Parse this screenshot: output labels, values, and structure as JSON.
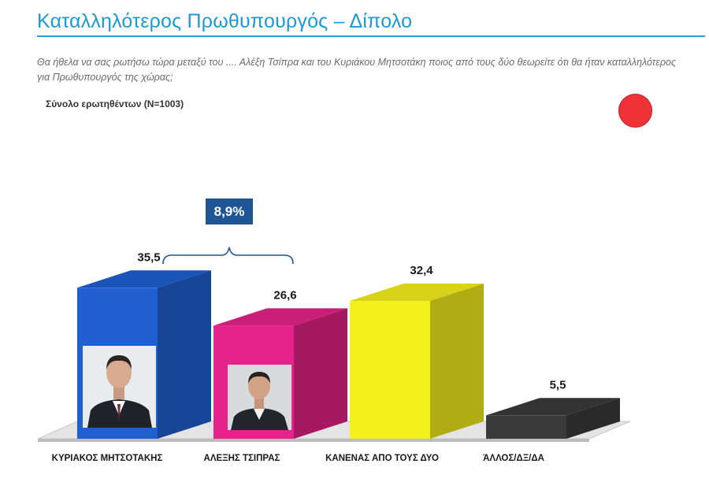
{
  "header": {
    "title": "Καταλληλότερος Πρωθυπουργός – Δίπολο",
    "question": "Θα ήθελα να σας ρωτήσω τώρα μεταξύ του .... Αλέξη Τσίπρα και του Κυριάκου Μητσοτάκη ποιος από τους δύο θεωρείτε ότι θα ήταν καταλληλότερος για Πρωθυπουργός της χώρας;",
    "base": "Σύνολο ερωτηθέντων (N=1003)"
  },
  "difference_label": "8,9%",
  "colors": {
    "title": "#1a9ad6",
    "indicator_dot": "#ee3237",
    "difference_box": "#1f5595"
  },
  "chart_data": {
    "type": "bar",
    "categories": [
      "ΚΥΡΙΑΚΟΣ ΜΗΤΣΟΤΑΚΗΣ",
      "ΑΛΕΞΗΣ ΤΣΙΠΡΑΣ",
      "ΚΑΝΕΝΑΣ ΑΠΟ ΤΟΥΣ ΔΥΟ",
      "ΆΛΛΟΣ/ΔΞ/ΔΑ"
    ],
    "values": [
      35.5,
      26.6,
      32.4,
      5.5
    ],
    "labels": [
      "35,5",
      "26,6",
      "32,4",
      "5,5"
    ],
    "colors": [
      "#1f5fd0",
      "#e5238a",
      "#f4f01c",
      "#3a3a3a"
    ],
    "title": "",
    "xlabel": "",
    "ylabel": "",
    "ylim": [
      0,
      40
    ],
    "grid": false,
    "legend": "none",
    "style": "3d"
  }
}
